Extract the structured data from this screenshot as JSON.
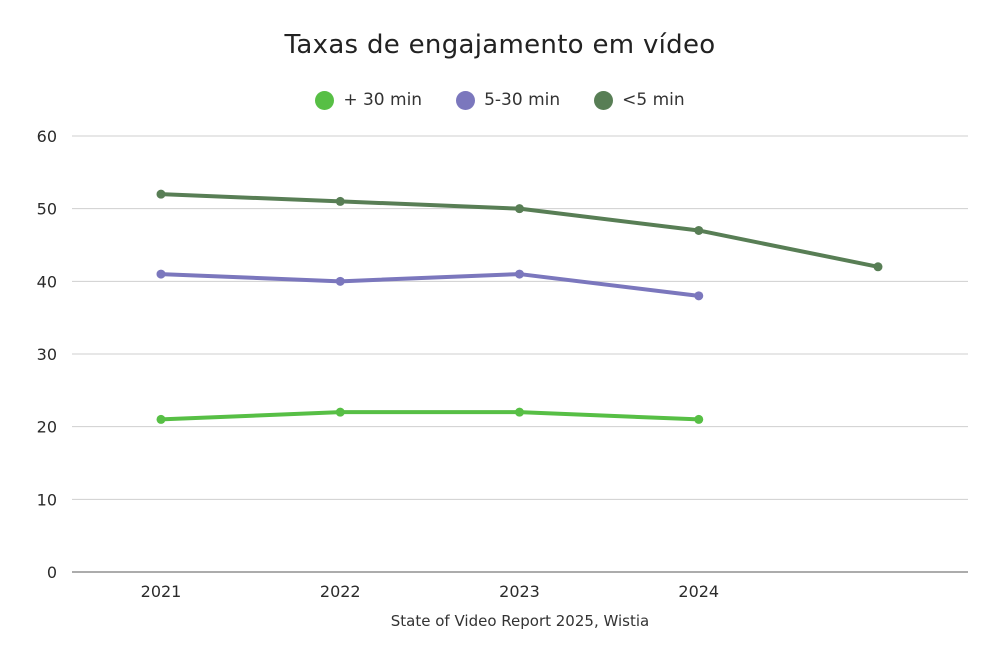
{
  "title": "Taxas de engajamento em vídeo",
  "source": "State of Video Report 2025, Wistia",
  "colors": {
    "grid": "#cfcfcf",
    "axis": "#7a7a7a",
    "text": "#2b2b2b"
  },
  "chart_data": {
    "type": "line",
    "title": "Taxas de engajamento em vídeo",
    "xlabel": "",
    "ylabel": "",
    "ylim": [
      0,
      60
    ],
    "yticks": [
      0,
      10,
      20,
      30,
      40,
      50,
      60
    ],
    "categories": [
      "2021",
      "2022",
      "2023",
      "2024",
      ""
    ],
    "grid": true,
    "legend_position": "top-center",
    "series": [
      {
        "name": "+ 30 min",
        "color": "#57bf45",
        "values": [
          21,
          22,
          22,
          21,
          null
        ]
      },
      {
        "name": "5-30 min",
        "color": "#7b77bd",
        "values": [
          41,
          40,
          41,
          38,
          null
        ]
      },
      {
        "name": "<5 min",
        "color": "#587e55",
        "values": [
          52,
          51,
          50,
          47,
          42
        ]
      }
    ]
  }
}
